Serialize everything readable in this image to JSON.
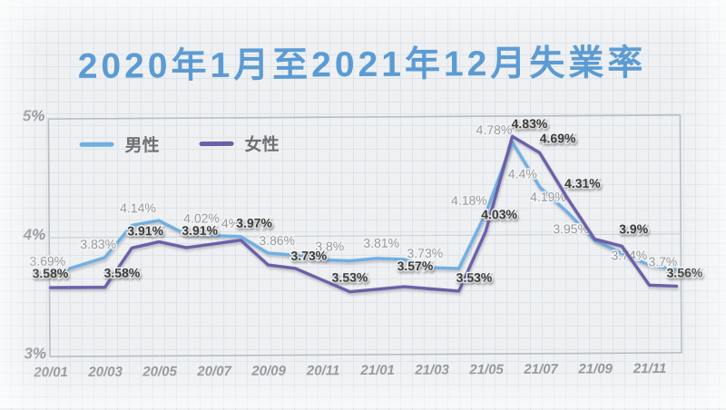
{
  "title": "2020年1月至2021年12月失業率",
  "legend": {
    "items": [
      {
        "label": "男性"
      },
      {
        "label": "女性"
      }
    ]
  },
  "colors": {
    "background": "#eef0f2",
    "paper_grid": "#dde3e9",
    "frame": "#b6bdc4",
    "inner_gridline": "#ccd3da",
    "title": "#5b9bd3",
    "male": "#6fafe2",
    "female": "#6b5ea8",
    "male_label": "#9a9a9b",
    "female_label": "#3d3d3d",
    "axis_text": "#8d9195"
  },
  "chart_data": {
    "type": "line",
    "title": "2020年1月至2021年12月失業率",
    "xlabel": "",
    "ylabel": "",
    "ylim": [
      3,
      5
    ],
    "y_ticks": [
      {
        "value": 3,
        "label": "3%"
      },
      {
        "value": 4,
        "label": "4%"
      },
      {
        "value": 5,
        "label": "5%"
      }
    ],
    "x_tick_labels": [
      "20/01",
      "20/03",
      "20/05",
      "20/07",
      "20/09",
      "20/11",
      "21/01",
      "21/03",
      "21/05",
      "21/07",
      "21/09",
      "21/11"
    ],
    "categories": [
      "20/01",
      "20/02",
      "20/03",
      "20/04",
      "20/05",
      "20/06",
      "20/07",
      "20/08",
      "20/09",
      "20/10",
      "20/11",
      "20/12",
      "21/01",
      "21/02",
      "21/03",
      "21/04",
      "21/05",
      "21/06",
      "21/07",
      "21/08",
      "21/09",
      "21/10",
      "21/11",
      "21/12"
    ],
    "unit": "%",
    "grid": true,
    "legend_position": "top-left",
    "series": [
      {
        "name": "男性",
        "color_key": "male",
        "values": [
          3.69,
          3.76,
          3.83,
          4.1,
          4.14,
          4.02,
          4.01,
          4.0,
          3.86,
          3.84,
          3.8,
          3.79,
          3.81,
          3.8,
          3.73,
          3.72,
          4.18,
          4.78,
          4.4,
          4.19,
          3.95,
          3.84,
          3.74,
          3.7
        ],
        "point_labels": [
          "3.69%",
          null,
          "3.83%",
          null,
          "4.14%",
          "4.02%",
          null,
          "4%",
          "3.86%",
          null,
          "3.8%",
          null,
          "3.81%",
          null,
          "3.73%",
          null,
          "4.18%",
          "4.78%",
          "4.4%",
          "4.19%",
          "3.95%",
          null,
          "3.74%",
          "3.7%"
        ]
      },
      {
        "name": "女性",
        "color_key": "female",
        "values": [
          3.58,
          3.58,
          3.58,
          3.91,
          3.96,
          3.91,
          3.94,
          3.97,
          3.76,
          3.73,
          3.63,
          3.53,
          3.55,
          3.57,
          3.55,
          3.53,
          4.03,
          4.83,
          4.69,
          4.31,
          3.96,
          3.9,
          3.57,
          3.56
        ],
        "point_labels": [
          "3.58%",
          null,
          "3.58%",
          "3.91%",
          null,
          "3.91%",
          null,
          "3.97%",
          null,
          "3.73%",
          null,
          "3.53%",
          null,
          "3.57%",
          null,
          "3.53%",
          "4.03%",
          "4.83%",
          "4.69%",
          "4.31%",
          null,
          "3.9%",
          null,
          "3.56%"
        ]
      }
    ]
  }
}
